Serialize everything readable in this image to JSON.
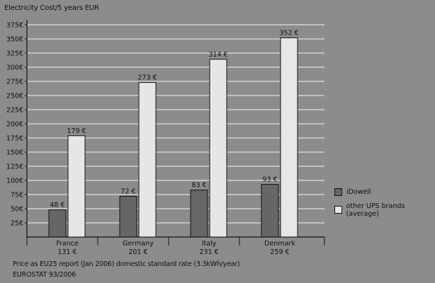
{
  "chart_data": {
    "type": "bar",
    "title": "",
    "ylabel": "Electricity Cost/5 years EUR",
    "xlabel": "",
    "ylim": [
      0,
      400
    ],
    "yticks": [
      25,
      50,
      75,
      100,
      125,
      150,
      175,
      200,
      225,
      250,
      275,
      300,
      325,
      350,
      375
    ],
    "ytick_suffix": "€",
    "categories": [
      "France",
      "Germany",
      "Italy",
      "Denmark"
    ],
    "category_sublabels": [
      "131 €",
      "201 €",
      "231 €",
      "259 €"
    ],
    "series": [
      {
        "name": "iDowell",
        "values": [
          48,
          72,
          83,
          93
        ],
        "color": "#666666",
        "labels": [
          "48 €",
          "72 €",
          "83 €",
          "93 €"
        ]
      },
      {
        "name": "other UPS brands (average)",
        "values": [
          179,
          273,
          314,
          352
        ],
        "color": "#e6e6e6",
        "labels": [
          "179 €",
          "273 €",
          "314 €",
          "352 €"
        ]
      }
    ],
    "grid": true,
    "legend_position": "right"
  },
  "notes": {
    "line1": "Price as EU25 report (Jan 2006) domestic standard rate (3.3kWh/year)",
    "line2": "EUROSTAT 93/2006"
  },
  "colors": {
    "background": "#8c8c8c",
    "gridline": "#e0e0e0",
    "axis": "#111111"
  }
}
